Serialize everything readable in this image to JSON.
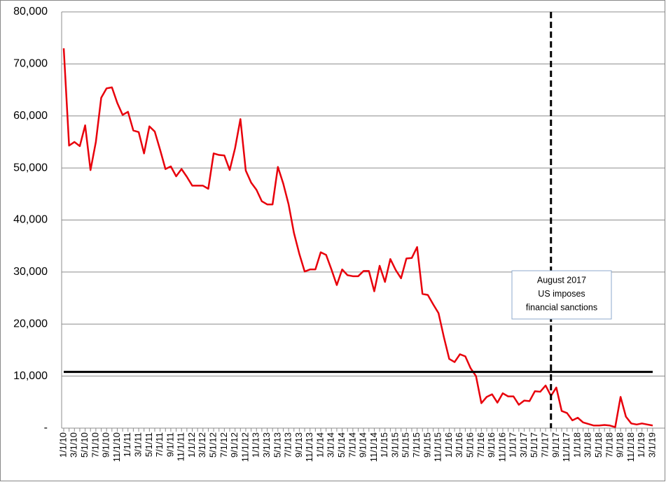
{
  "chart_data": {
    "type": "line",
    "categories": [
      "1/1/10",
      null,
      "3/1/10",
      null,
      "5/1/10",
      null,
      "7/1/10",
      null,
      "9/1/10",
      null,
      "11/1/10",
      null,
      "1/1/11",
      null,
      "3/1/11",
      null,
      "5/1/11",
      null,
      "7/1/11",
      null,
      "9/1/11",
      null,
      "11/1/11",
      null,
      "1/1/12",
      null,
      "3/1/12",
      null,
      "5/1/12",
      null,
      "7/1/12",
      null,
      "9/1/12",
      null,
      "11/1/12",
      null,
      "1/1/13",
      null,
      "3/1/13",
      null,
      "5/1/13",
      null,
      "7/1/13",
      null,
      "9/1/13",
      null,
      "11/1/13",
      null,
      "1/1/14",
      null,
      "3/1/14",
      null,
      "5/1/14",
      null,
      "7/1/14",
      null,
      "9/1/14",
      null,
      "11/1/14",
      null,
      "1/1/15",
      null,
      "3/1/15",
      null,
      "5/1/15",
      null,
      "7/1/15",
      null,
      "9/1/15",
      null,
      "11/1/15",
      null,
      "1/1/16",
      null,
      "3/1/16",
      null,
      "5/1/16",
      null,
      "7/1/16",
      null,
      "9/1/16",
      null,
      "11/1/16",
      null,
      "1/1/17",
      null,
      "3/1/17",
      null,
      "5/1/17",
      null,
      "7/1/17",
      null,
      "9/1/17",
      null,
      "11/1/17",
      null,
      "1/1/18",
      null,
      "3/1/18",
      null,
      "5/1/18",
      null,
      "7/1/18",
      null,
      "9/1/18",
      null,
      "11/1/18",
      null,
      "1/1/19",
      null,
      "3/1/19"
    ],
    "series": [
      {
        "color": "#e8000b",
        "values": [
          73000,
          54300,
          55000,
          54200,
          58200,
          49600,
          55000,
          63500,
          65300,
          65500,
          62500,
          60200,
          60800,
          57200,
          56900,
          52800,
          58000,
          57000,
          53500,
          49800,
          50300,
          48400,
          49800,
          48300,
          46600,
          46600,
          46600,
          46000,
          52800,
          52500,
          52400,
          49600,
          53800,
          59400,
          49500,
          47200,
          45800,
          43600,
          43000,
          43000,
          50200,
          47000,
          43000,
          37500,
          33500,
          30100,
          30500,
          30500,
          33800,
          33300,
          30500,
          27500,
          30500,
          29400,
          29200,
          29200,
          30200,
          30200,
          26300,
          31200,
          28100,
          32500,
          30400,
          28800,
          32600,
          32700,
          34800,
          25800,
          25600,
          23800,
          22100,
          17500,
          13300,
          12700,
          14200,
          13800,
          11500,
          10000,
          4800,
          6000,
          6500,
          4900,
          6700,
          6100,
          6100,
          4500,
          5300,
          5200,
          7100,
          7000,
          8200,
          6200,
          7800,
          3300,
          2900,
          1500,
          2000,
          1100,
          800,
          500,
          500,
          600,
          500,
          200,
          6000,
          2200,
          900,
          700,
          900,
          700,
          500
        ]
      }
    ],
    "ylim": [
      0,
      80000
    ],
    "yticks": [
      {
        "value": 0,
        "label": "-"
      },
      {
        "value": 10000,
        "label": "10,000"
      },
      {
        "value": 20000,
        "label": "20,000"
      },
      {
        "value": 30000,
        "label": "30,000"
      },
      {
        "value": 40000,
        "label": "40,000"
      },
      {
        "value": 50000,
        "label": "50,000"
      },
      {
        "value": 60000,
        "label": "60,000"
      },
      {
        "value": 70000,
        "label": "70,000"
      },
      {
        "value": 80000,
        "label": "80,000"
      }
    ],
    "grid": true,
    "reference_line": 10800,
    "event_category_index": 91,
    "annotation": [
      "August 2017",
      "US imposes",
      "financial sanctions"
    ]
  }
}
